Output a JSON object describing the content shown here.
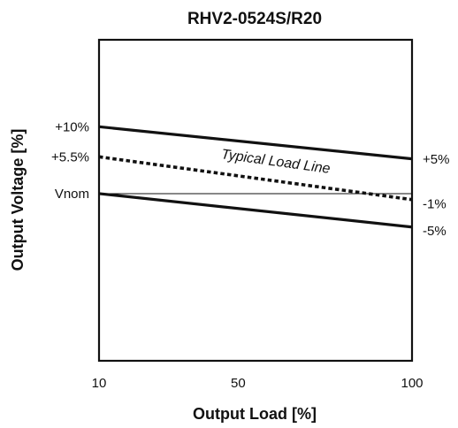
{
  "chart_data": {
    "type": "line",
    "title": "RHV2-0524S/R20",
    "xlabel": "Output Load [%]",
    "ylabel": "Output Voltage [%]",
    "x_ticks": [
      "10",
      "50",
      "100"
    ],
    "x_tick_values": [
      10,
      50,
      100
    ],
    "xlim": [
      10,
      100
    ],
    "ylim": [
      -25,
      23
    ],
    "grid": false,
    "legend": "none",
    "left_labels": [
      {
        "text": "+10%",
        "y": 10
      },
      {
        "text": "+5.5%",
        "y": 5.5
      },
      {
        "text": "Vnom",
        "y": 0
      }
    ],
    "right_labels": [
      {
        "text": "+5%",
        "y": 5.7
      },
      {
        "text": "-1%",
        "y": -1
      },
      {
        "text": "-5%",
        "y": -5
      }
    ],
    "series": [
      {
        "style": "solid-thick",
        "x": [
          10,
          100
        ],
        "y": [
          10,
          5.2
        ]
      },
      {
        "style": "dotted",
        "x": [
          10,
          100
        ],
        "y": [
          5.5,
          -0.9
        ]
      },
      {
        "style": "solid-thick",
        "x": [
          10,
          100
        ],
        "y": [
          0,
          -5.0
        ]
      },
      {
        "style": "solid-thin",
        "x": [
          10,
          100
        ],
        "y": [
          0,
          0
        ]
      }
    ],
    "annotations": [
      {
        "text": "Typical Load Line",
        "x": 45,
        "y": 4.6
      }
    ],
    "colors": {
      "line": "#111111",
      "frame": "#111111",
      "background": "#ffffff"
    }
  }
}
